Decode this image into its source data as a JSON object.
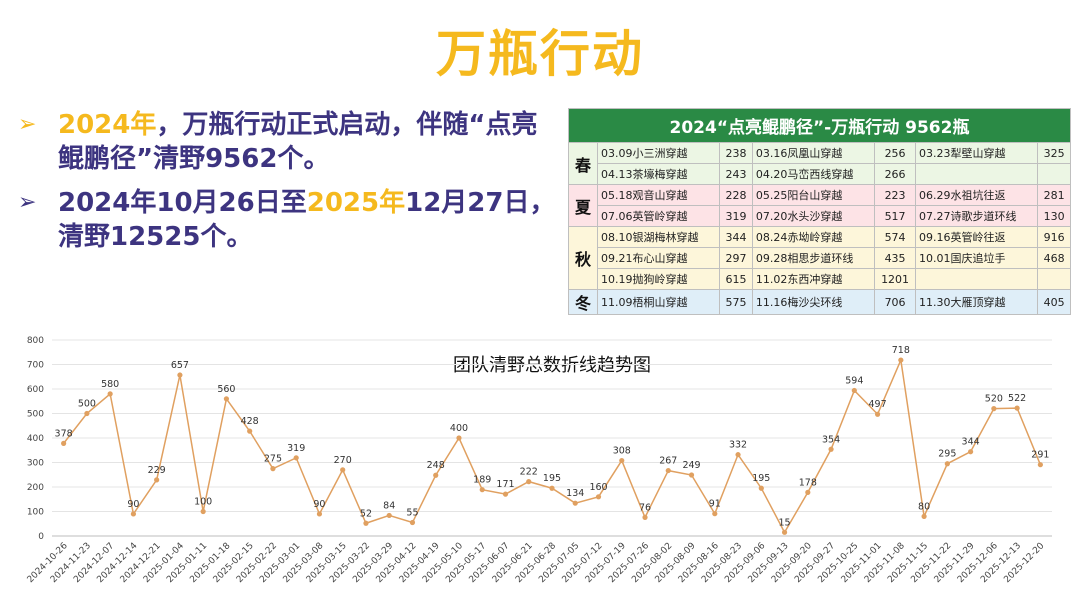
{
  "page": {
    "title": "万瓶行动"
  },
  "bullets": [
    {
      "parts": [
        {
          "text": "2024年",
          "hl": true
        },
        {
          "text": "，万瓶行动正式启动，伴随“点亮鲲鹏径”清野9562个。",
          "hl": false
        }
      ]
    },
    {
      "parts": [
        {
          "text": "2024年10月26日至",
          "hl": false
        },
        {
          "text": "2025年",
          "hl": true
        },
        {
          "text": "12月27日，清野12525个。",
          "hl": false
        }
      ]
    }
  ],
  "table": {
    "title": "2024“点亮鲲鹏径”-万瓶行动 9562瓶",
    "groups": [
      {
        "season": "春",
        "cls": "r-spring",
        "rows": [
          [
            "03.09小三洲穿越",
            "238",
            "03.16凤凰山穿越",
            "256",
            "03.23犁壁山穿越",
            "325"
          ],
          [
            "04.13茶壕梅穿越",
            "243",
            "04.20马峦西线穿越",
            "266",
            "",
            ""
          ]
        ]
      },
      {
        "season": "夏",
        "cls": "r-summer",
        "rows": [
          [
            "05.18观音山穿越",
            "228",
            "05.25阳台山穿越",
            "223",
            "06.29水祖坑往返",
            "281"
          ],
          [
            "07.06英管岭穿越",
            "319",
            "07.20水头沙穿越",
            "517",
            "07.27诗歌步道环线",
            "130"
          ]
        ]
      },
      {
        "season": "秋",
        "cls": "r-autumn",
        "rows": [
          [
            "08.10银湖梅林穿越",
            "344",
            "08.24赤坳岭穿越",
            "574",
            "09.16英管岭往返",
            "916"
          ],
          [
            "09.21布心山穿越",
            "297",
            "09.28相思步道环线",
            "435",
            "10.01国庆追垃手",
            "468"
          ],
          [
            "10.19抛狗岭穿越",
            "615",
            "11.02东西冲穿越",
            "1201",
            "",
            ""
          ]
        ]
      },
      {
        "season": "冬",
        "cls": "r-winter",
        "rows": [
          [
            "11.09梧桐山穿越",
            "575",
            "11.16梅沙尖环线",
            "706",
            "11.30大雁顶穿越",
            "405"
          ]
        ]
      }
    ]
  },
  "chart_data": {
    "type": "line",
    "title": "团队清野总数折线趋势图",
    "xlabel": "",
    "ylabel": "",
    "ylim": [
      0,
      800
    ],
    "yticks": [
      0,
      100,
      200,
      300,
      400,
      500,
      600,
      700,
      800
    ],
    "grid": true,
    "line_color": "#e0a060",
    "categories": [
      "2024-10-26",
      "2024-11-23",
      "2024-12-07",
      "2024-12-14",
      "2024-12-21",
      "2025-01-04",
      "2025-01-11",
      "2025-01-18",
      "2025-02-15",
      "2025-02-22",
      "2025-03-01",
      "2025-03-08",
      "2025-03-15",
      "2025-03-22",
      "2025-03-29",
      "2025-04-12",
      "2025-04-19",
      "2025-05-10",
      "2025-05-17",
      "2025-06-07",
      "2025-06-21",
      "2025-06-28",
      "2025-07-05",
      "2025-07-12",
      "2025-07-19",
      "2025-07-26",
      "2025-08-02",
      "2025-08-09",
      "2025-08-16",
      "2025-08-23",
      "2025-09-06",
      "2025-09-13",
      "2025-09-20",
      "2025-09-27",
      "2025-10-25",
      "2025-11-01",
      "2025-11-08",
      "2025-11-15",
      "2025-11-22",
      "2025-11-29",
      "2025-12-06",
      "2025-12-13",
      "2025-12-20"
    ],
    "values": [
      378,
      500,
      580,
      90,
      229,
      657,
      100,
      560,
      428,
      275,
      319,
      90,
      270,
      52,
      84,
      55,
      248,
      400,
      189,
      171,
      222,
      195,
      134,
      160,
      308,
      76,
      267,
      249,
      91,
      332,
      195,
      15,
      178,
      354,
      594,
      497,
      718,
      80,
      295,
      344,
      520,
      522,
      291
    ]
  }
}
